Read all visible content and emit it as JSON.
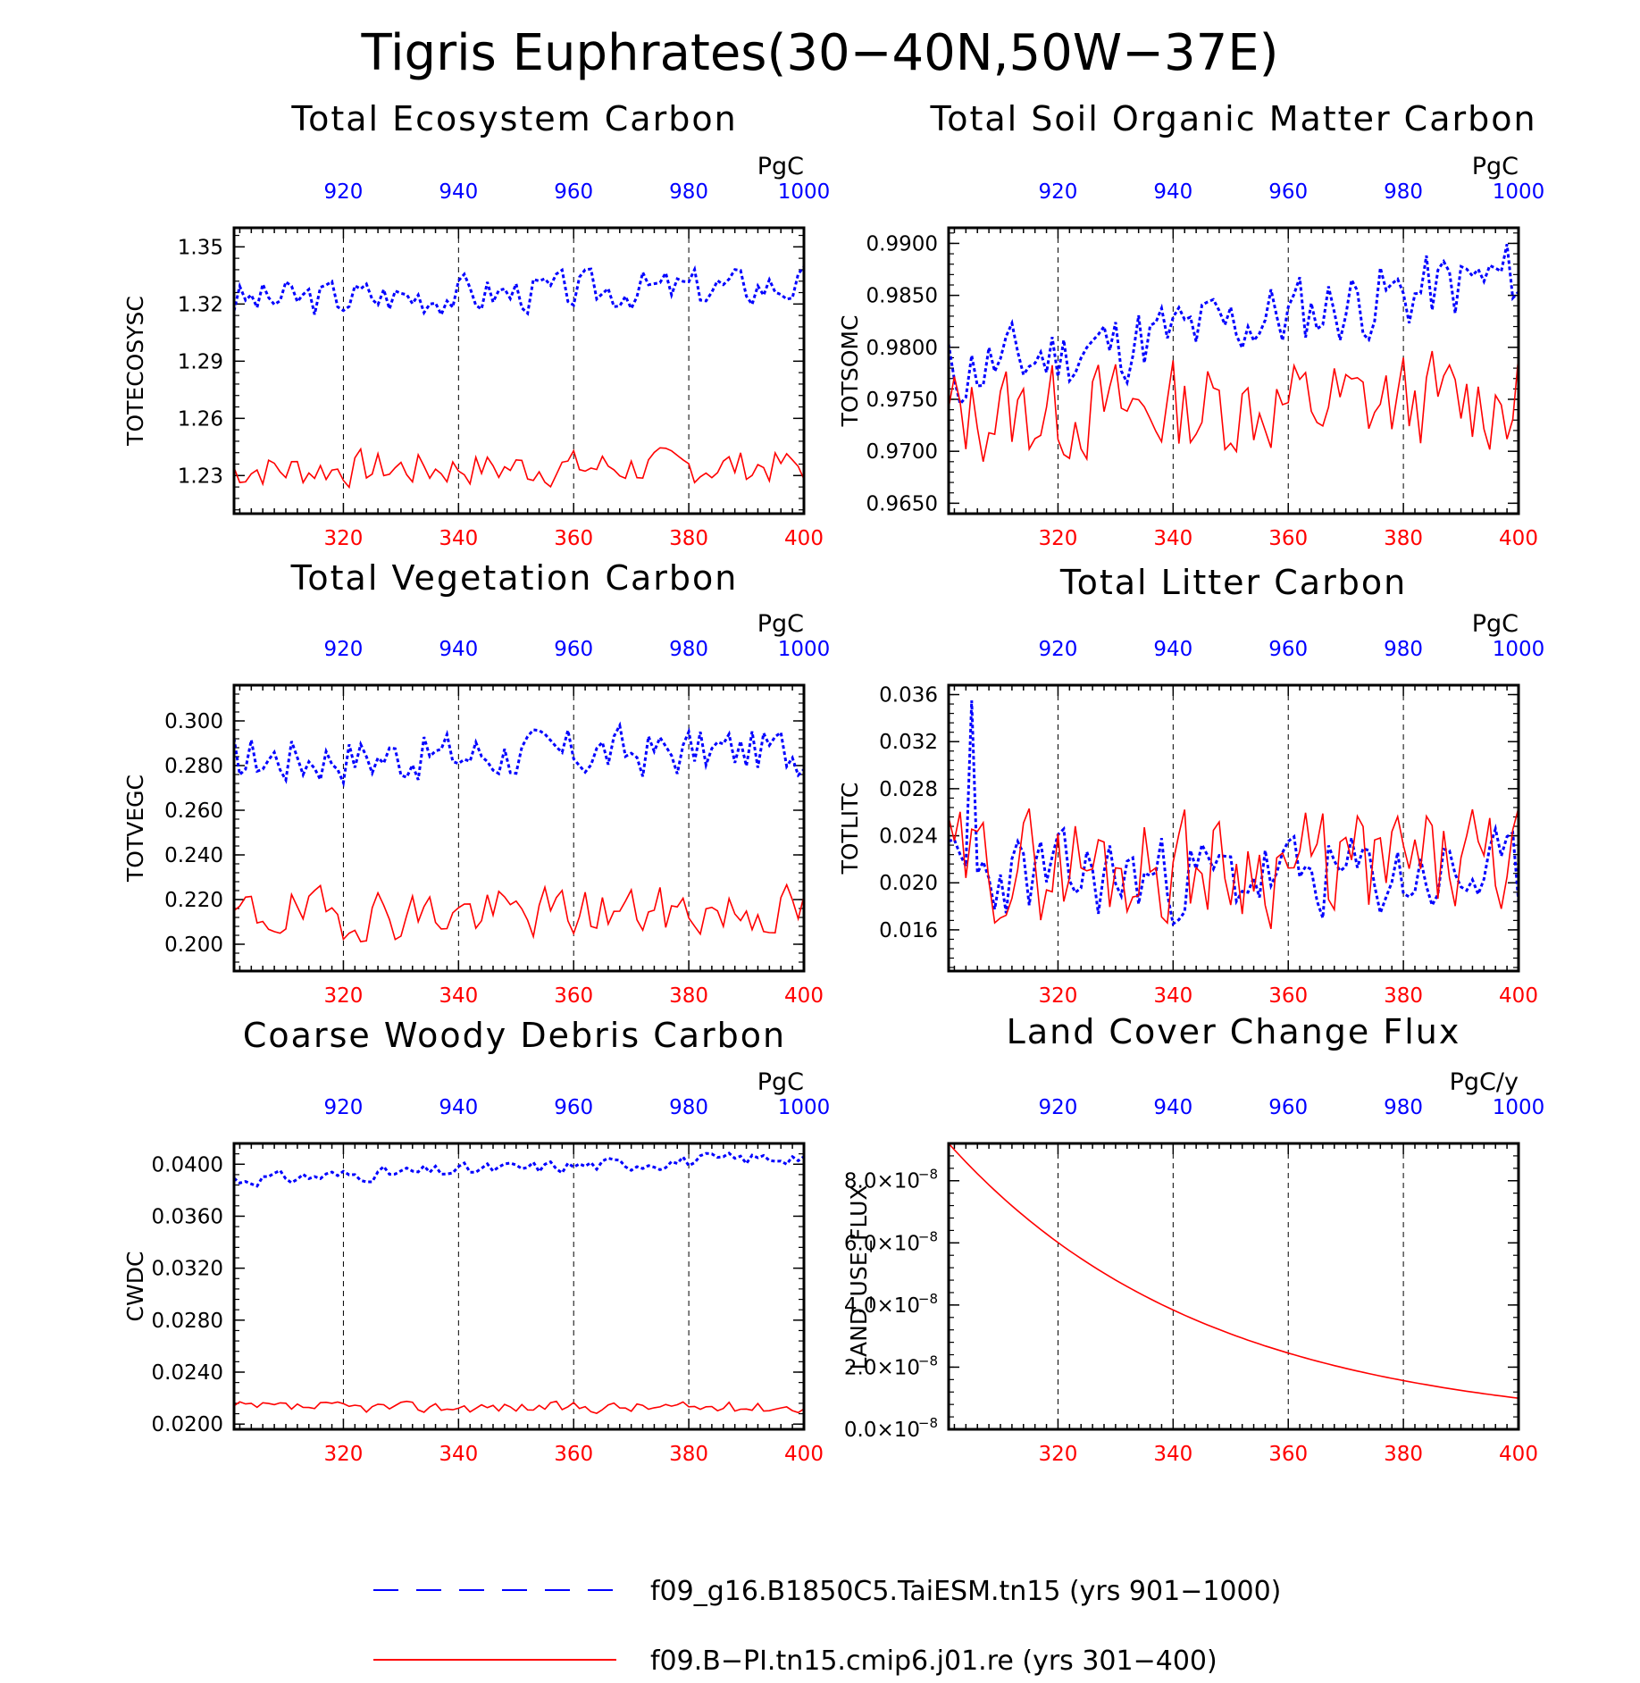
{
  "title": "Tigris Euphrates(30−40N,50W−37E)",
  "legend": [
    {
      "label": "f09_g16.B1850C5.TaiESM.tn15 (yrs 901−1000)",
      "color": "#0000ff",
      "style": "dashed"
    },
    {
      "label": "f09.B−PI.tn15.cmip6.j01.re (yrs 301−400)",
      "color": "#ff0000",
      "style": "solid"
    }
  ],
  "chart_data": [
    {
      "type": "line",
      "title": "Total Ecosystem Carbon",
      "ylabel": "TOTECOSYSC",
      "units": "PgC",
      "xlim_bottom": [
        301,
        400
      ],
      "xlim_top": [
        901,
        1000
      ],
      "ylim": [
        1.21,
        1.36
      ],
      "xticks_bottom": [
        "320",
        "340",
        "360",
        "380",
        "400"
      ],
      "xticks_top": [
        "920",
        "940",
        "960",
        "980",
        "1000"
      ],
      "yticks": [
        {
          "v": 1.23,
          "label": "1.23"
        },
        {
          "v": 1.26,
          "label": "1.26"
        },
        {
          "v": 1.29,
          "label": "1.29"
        },
        {
          "v": 1.32,
          "label": "1.32"
        },
        {
          "v": 1.35,
          "label": "1.35"
        }
      ],
      "series": [
        {
          "color": "#0000ff",
          "dashed": true,
          "base": 1.322,
          "trend": 0.008,
          "amp": 0.01,
          "seed": 3
        },
        {
          "color": "#ff0000",
          "dashed": false,
          "base": 1.233,
          "trend": 0.002,
          "amp": 0.009,
          "seed": 7
        }
      ]
    },
    {
      "type": "line",
      "title": "Total Soil Organic Matter Carbon",
      "ylabel": "TOTSOMC",
      "units": "PgC",
      "xlim_bottom": [
        301,
        400
      ],
      "xlim_top": [
        901,
        1000
      ],
      "ylim": [
        0.964,
        0.9915
      ],
      "xticks_bottom": [
        "320",
        "340",
        "360",
        "380",
        "400"
      ],
      "xticks_top": [
        "920",
        "940",
        "960",
        "980",
        "1000"
      ],
      "yticks": [
        {
          "v": 0.965,
          "label": "0.9650"
        },
        {
          "v": 0.97,
          "label": "0.9700"
        },
        {
          "v": 0.975,
          "label": "0.9750"
        },
        {
          "v": 0.98,
          "label": "0.9800"
        },
        {
          "v": 0.985,
          "label": "0.9850"
        },
        {
          "v": 0.99,
          "label": "0.9900"
        }
      ],
      "series": [
        {
          "color": "#0000ff",
          "dashed": true,
          "base": 0.9775,
          "trend": 0.0095,
          "amp": 0.0035,
          "seed": 11
        },
        {
          "color": "#ff0000",
          "dashed": false,
          "base": 0.9735,
          "trend": 0.0015,
          "amp": 0.0045,
          "seed": 13
        }
      ]
    },
    {
      "type": "line",
      "title": "Total Vegetation Carbon",
      "ylabel": "TOTVEGC",
      "units": "PgC",
      "xlim_bottom": [
        301,
        400
      ],
      "xlim_top": [
        901,
        1000
      ],
      "ylim": [
        0.188,
        0.316
      ],
      "xticks_bottom": [
        "320",
        "340",
        "360",
        "380",
        "400"
      ],
      "xticks_top": [
        "920",
        "940",
        "960",
        "980",
        "1000"
      ],
      "yticks": [
        {
          "v": 0.2,
          "label": "0.200"
        },
        {
          "v": 0.22,
          "label": "0.220"
        },
        {
          "v": 0.24,
          "label": "0.240"
        },
        {
          "v": 0.26,
          "label": "0.260"
        },
        {
          "v": 0.28,
          "label": "0.280"
        },
        {
          "v": 0.3,
          "label": "0.300"
        }
      ],
      "series": [
        {
          "color": "#0000ff",
          "dashed": true,
          "base": 0.283,
          "trend": 0.004,
          "amp": 0.011,
          "seed": 17
        },
        {
          "color": "#ff0000",
          "dashed": false,
          "base": 0.213,
          "trend": 0.002,
          "amp": 0.011,
          "seed": 19
        }
      ]
    },
    {
      "type": "line",
      "title": "Total Litter Carbon",
      "ylabel": "TOTLITC",
      "units": "PgC",
      "xlim_bottom": [
        301,
        400
      ],
      "xlim_top": [
        901,
        1000
      ],
      "ylim": [
        0.0125,
        0.0368
      ],
      "xticks_bottom": [
        "320",
        "340",
        "360",
        "380",
        "400"
      ],
      "xticks_top": [
        "920",
        "940",
        "960",
        "980",
        "1000"
      ],
      "yticks": [
        {
          "v": 0.016,
          "label": "0.016"
        },
        {
          "v": 0.02,
          "label": "0.020"
        },
        {
          "v": 0.024,
          "label": "0.024"
        },
        {
          "v": 0.028,
          "label": "0.028"
        },
        {
          "v": 0.032,
          "label": "0.032"
        },
        {
          "v": 0.036,
          "label": "0.036"
        }
      ],
      "series": [
        {
          "color": "#0000ff",
          "dashed": true,
          "base": 0.0205,
          "trend": 0.0,
          "amp": 0.0035,
          "seed": 23,
          "spike": [
            4,
            0.0355
          ]
        },
        {
          "color": "#ff0000",
          "dashed": false,
          "base": 0.0215,
          "trend": 0.0,
          "amp": 0.0045,
          "seed": 29
        }
      ]
    },
    {
      "type": "line",
      "title": "Coarse Woody Debris Carbon",
      "ylabel": "CWDC",
      "units": "PgC",
      "xlim_bottom": [
        301,
        400
      ],
      "xlim_top": [
        901,
        1000
      ],
      "ylim": [
        0.0196,
        0.0416
      ],
      "xticks_bottom": [
        "320",
        "340",
        "360",
        "380",
        "400"
      ],
      "xticks_top": [
        "920",
        "940",
        "960",
        "980",
        "1000"
      ],
      "yticks": [
        {
          "v": 0.02,
          "label": "0.0200"
        },
        {
          "v": 0.024,
          "label": "0.0240"
        },
        {
          "v": 0.028,
          "label": "0.0280"
        },
        {
          "v": 0.032,
          "label": "0.0320"
        },
        {
          "v": 0.036,
          "label": "0.0360"
        },
        {
          "v": 0.04,
          "label": "0.0400"
        }
      ],
      "series": [
        {
          "color": "#0000ff",
          "dashed": true,
          "base": 0.0388,
          "trend": 0.0018,
          "amp": 0.0005,
          "seed": 31
        },
        {
          "color": "#ff0000",
          "dashed": false,
          "base": 0.0213,
          "trend": 0.0,
          "amp": 0.0004,
          "seed": 37
        }
      ]
    },
    {
      "type": "line",
      "title": "Land Cover Change Flux",
      "ylabel": "LAND_USE_FLUX",
      "units": "PgC/y",
      "xlim_bottom": [
        301,
        400
      ],
      "xlim_top": [
        901,
        1000
      ],
      "ylim": [
        0,
        9.2e-08
      ],
      "xticks_bottom": [
        "320",
        "340",
        "360",
        "380",
        "400"
      ],
      "xticks_top": [
        "920",
        "940",
        "960",
        "980",
        "1000"
      ],
      "yticks": [
        {
          "v": 0,
          "label": "0.0×10",
          "exp": "−8"
        },
        {
          "v": 2e-08,
          "label": "2.0×10",
          "exp": "−8"
        },
        {
          "v": 4e-08,
          "label": "4.0×10",
          "exp": "−8"
        },
        {
          "v": 6e-08,
          "label": "6.0×10",
          "exp": "−8"
        },
        {
          "v": 8e-08,
          "label": "8.0×10",
          "exp": "−8"
        }
      ],
      "series": [
        {
          "color": "#ff0000",
          "dashed": false,
          "decay": {
            "y0": 9.2e-08,
            "rate": 0.0224
          }
        }
      ]
    }
  ]
}
